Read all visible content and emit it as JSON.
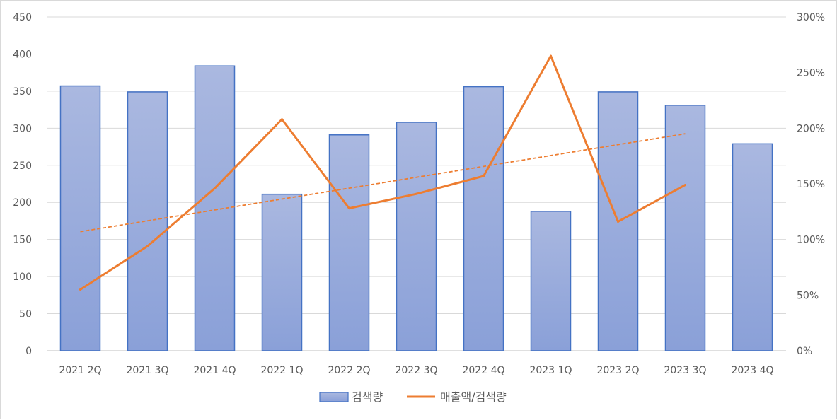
{
  "chart_data": {
    "type": "bar",
    "categories": [
      "2021 2Q",
      "2021 3Q",
      "2021 4Q",
      "2022 1Q",
      "2022 2Q",
      "2022 3Q",
      "2022 4Q",
      "2023 1Q",
      "2023 2Q",
      "2023 3Q",
      "2023 4Q"
    ],
    "series": [
      {
        "name": "검색량",
        "type": "bar",
        "axis": "left",
        "color": "#8fa4d9",
        "border_color": "#4472c4",
        "values": [
          357,
          349,
          384,
          211,
          291,
          308,
          356,
          188,
          349,
          331,
          279
        ]
      },
      {
        "name": "매출액/검색량",
        "type": "line",
        "axis": "right",
        "color": "#ed7d31",
        "values": [
          55,
          94,
          146,
          208,
          128,
          141,
          157,
          265,
          116,
          149,
          null
        ]
      }
    ],
    "trendline": {
      "series": "매출액/검색량",
      "style": "dashed",
      "color": "#ed7d31",
      "start": 107,
      "end": 195
    },
    "y_left": {
      "min": 0,
      "max": 450,
      "step": 50,
      "ticks": [
        "0",
        "50",
        "100",
        "150",
        "200",
        "250",
        "300",
        "350",
        "400",
        "450"
      ]
    },
    "y_right": {
      "min": 0,
      "max": 300,
      "step": 50,
      "ticks": [
        "0%",
        "50%",
        "100%",
        "150%",
        "200%",
        "250%",
        "300%"
      ]
    },
    "grid": true,
    "legend": {
      "position": "bottom",
      "entries": [
        "검색량",
        "매출액/검색량"
      ]
    }
  }
}
